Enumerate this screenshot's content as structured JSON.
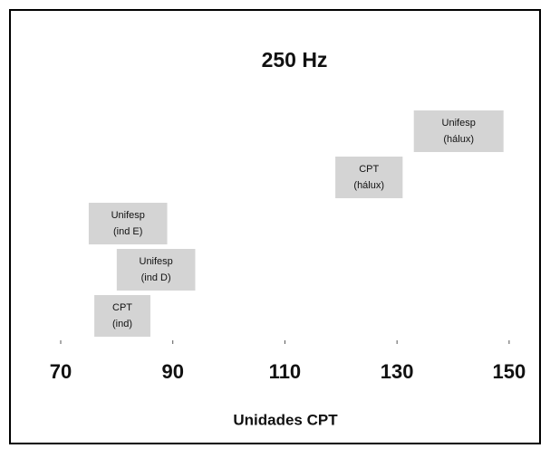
{
  "chart_data": {
    "type": "range",
    "title": "250 Hz",
    "x_label": "Unidades CPT",
    "ranges": [
      {
        "label": [
          "Unifesp",
          "(hálux)"
        ],
        "low": 133,
        "high": 149
      },
      {
        "label": [
          "CPT",
          "(hálux)"
        ],
        "low": 119,
        "high": 131
      },
      {
        "label": [
          "Unifesp",
          "(ind E)"
        ],
        "low": 75,
        "high": 89
      },
      {
        "label": [
          "Unifesp",
          "(ind D)"
        ],
        "low": 80,
        "high": 94
      },
      {
        "label": [
          "CPT",
          "(ind)"
        ],
        "low": 76,
        "high": 86
      }
    ],
    "color": "#d4d4d4",
    "xlim": [
      62,
      156
    ],
    "xticks": [
      70,
      90,
      110,
      130,
      150
    ]
  }
}
